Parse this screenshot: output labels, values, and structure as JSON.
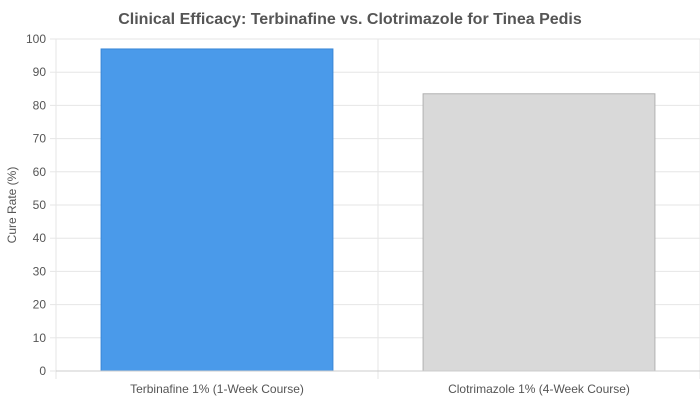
{
  "chart_data": {
    "type": "bar",
    "title": "Clinical Efficacy: Terbinafine vs. Clotrimazole for Tinea Pedis",
    "xlabel": "",
    "ylabel": "Cure Rate (%)",
    "ylim": [
      0,
      100
    ],
    "yticks": [
      "0",
      "10",
      "20",
      "30",
      "40",
      "50",
      "60",
      "70",
      "80",
      "90",
      "100"
    ],
    "categories": [
      "Terbinafine 1% (1-Week Course)",
      "Clotrimazole 1% (4-Week Course)"
    ],
    "values": [
      97,
      83.5
    ],
    "grid": true,
    "legend": "none"
  },
  "colors": {
    "bar_fills": [
      "#4a9aea",
      "#d9d9d9"
    ],
    "bar_strokes": [
      "#3a87d6",
      "#b0b0b0"
    ],
    "grid": "#e6e6e6",
    "axis_line": "#cccccc",
    "text": "#555555",
    "title": "#555555"
  }
}
